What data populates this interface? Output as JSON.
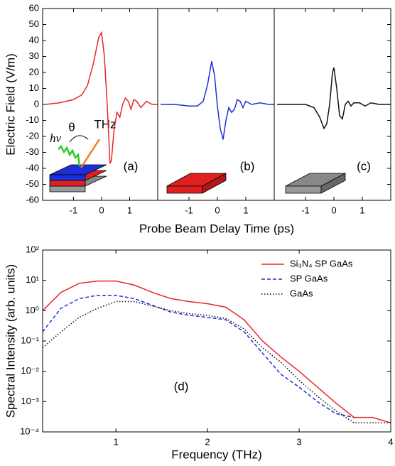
{
  "chart_data": [
    {
      "type": "line",
      "ylabel": "Electric Field (V/m)",
      "panel_label": "(a)",
      "annotations": [
        "hv",
        "θ",
        "THz"
      ],
      "x": [
        -2,
        -1.5,
        -1,
        -0.7,
        -0.5,
        -0.3,
        -0.1,
        0,
        0.1,
        0.2,
        0.3,
        0.35,
        0.45,
        0.55,
        0.65,
        0.75,
        0.85,
        0.95,
        1.05,
        1.15,
        1.25,
        1.4,
        1.6,
        1.8,
        2
      ],
      "values": [
        0,
        1,
        3,
        6,
        12,
        25,
        42,
        45,
        30,
        0,
        -37,
        -35,
        -15,
        -5,
        -8,
        0,
        4,
        2,
        -3,
        3,
        2,
        -2,
        2,
        0,
        0
      ],
      "color": "#e8262b",
      "xlim": [
        -2.1,
        2
      ],
      "xticks": [
        -1,
        0,
        1
      ],
      "ylim": [
        -60,
        60
      ],
      "yticks": [
        -60,
        -50,
        -40,
        -30,
        -20,
        -10,
        0,
        10,
        20,
        30,
        40,
        50,
        60
      ]
    },
    {
      "type": "line",
      "xlabel": "Probe Beam Delay Time (ps)",
      "panel_label": "(b)",
      "x": [
        -2,
        -1.5,
        -1,
        -0.7,
        -0.5,
        -0.35,
        -0.2,
        -0.1,
        0,
        0.1,
        0.2,
        0.3,
        0.4,
        0.5,
        0.6,
        0.7,
        0.8,
        0.9,
        1,
        1.2,
        1.5,
        1.8,
        2
      ],
      "values": [
        0,
        0,
        -1,
        -1,
        2,
        12,
        27,
        18,
        -1,
        -15,
        -22,
        -10,
        -2,
        -5,
        -3,
        3,
        2,
        -2,
        2,
        0,
        1,
        0,
        0
      ],
      "color": "#1f2fd6",
      "xlim": [
        -2.1,
        2
      ],
      "xticks": [
        -1,
        0,
        1
      ],
      "ylim": [
        -60,
        60
      ]
    },
    {
      "type": "line",
      "panel_label": "(c)",
      "x": [
        -2,
        -1,
        -0.7,
        -0.5,
        -0.35,
        -0.25,
        -0.15,
        -0.05,
        0,
        0.1,
        0.2,
        0.3,
        0.4,
        0.5,
        0.6,
        0.7,
        0.9,
        1.1,
        1.3,
        1.6,
        2
      ],
      "values": [
        0,
        0,
        -2,
        -8,
        -15,
        -12,
        0,
        20,
        23,
        10,
        -7,
        -9,
        0,
        2,
        -1,
        1,
        1,
        -1,
        1,
        0,
        0
      ],
      "color": "#111111",
      "xlim": [
        -2.1,
        2
      ],
      "xticks": [
        -1,
        0,
        1
      ],
      "ylim": [
        -60,
        60
      ]
    },
    {
      "type": "line",
      "xlabel": "Frequency (THz)",
      "ylabel": "Spectral Intensity (arb. units)",
      "panel_label": "(d)",
      "log_y": true,
      "legend": "upper right",
      "x": [
        0.2,
        0.4,
        0.6,
        0.8,
        1.0,
        1.2,
        1.4,
        1.6,
        1.8,
        2.0,
        2.2,
        2.4,
        2.6,
        2.8,
        3.0,
        3.2,
        3.4,
        3.6,
        3.8,
        4.0
      ],
      "series": [
        {
          "name": "Si₃N₄ SP GaAs",
          "color": "#e8262b",
          "dash": "solid",
          "values": [
            1.0,
            4,
            8,
            9.5,
            9.5,
            7,
            4,
            2.5,
            2,
            1.7,
            1.3,
            0.5,
            0.1,
            0.03,
            0.01,
            0.003,
            0.0009,
            0.0003,
            0.0003,
            0.0002
          ]
        },
        {
          "name": "SP GaAs",
          "color": "#1f2fd6",
          "dash": "dashed",
          "values": [
            0.2,
            1.2,
            2.5,
            3.2,
            3.2,
            2.5,
            1.5,
            0.9,
            0.7,
            0.6,
            0.5,
            0.2,
            0.04,
            0.008,
            0.003,
            0.001,
            0.0004,
            0.0003,
            null,
            null
          ]
        },
        {
          "name": "GaAs",
          "color": "#111111",
          "dash": "dotted",
          "values": [
            0.06,
            0.2,
            0.6,
            1.2,
            2.0,
            2.0,
            1.4,
            1.0,
            0.8,
            0.7,
            0.55,
            0.25,
            0.06,
            0.02,
            0.005,
            0.0015,
            0.0005,
            0.0002,
            0.0002,
            0.0002
          ]
        }
      ],
      "xlim": [
        0.2,
        4
      ],
      "xticks": [
        1,
        2,
        3,
        4
      ],
      "ylim": [
        0.0001,
        100
      ],
      "yticks": [
        {
          "value": 0.0001,
          "label": "10⁻⁴"
        },
        {
          "value": 0.001,
          "label": "10⁻³"
        },
        {
          "value": 0.01,
          "label": "10⁻²"
        },
        {
          "value": 0.1,
          "label": "10⁻¹"
        },
        {
          "value": 1,
          "label": "10⁰"
        },
        {
          "value": 10,
          "label": "10¹"
        },
        {
          "value": 100,
          "label": "10²"
        }
      ]
    }
  ]
}
